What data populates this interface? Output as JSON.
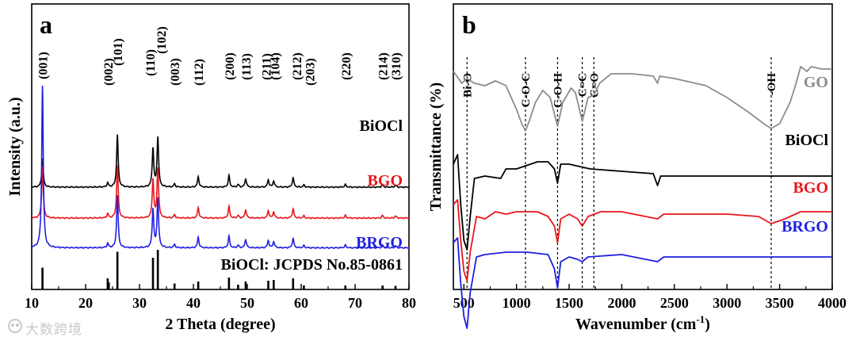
{
  "watermark": "大数跨境",
  "chart_data": [
    {
      "type": "line",
      "panel_label": "a",
      "xlabel": "2 Theta (degree)",
      "ylabel": "Intensity (a.u.)",
      "xlim": [
        10,
        80
      ],
      "xticks": [
        10,
        20,
        30,
        40,
        50,
        60,
        70,
        80
      ],
      "grid": false,
      "peaks": [
        {
          "pos": 12.0,
          "label": "(001)",
          "h": 0.28
        },
        {
          "pos": 24.1,
          "label": "(002)",
          "h": 0.08
        },
        {
          "pos": 25.9,
          "label": "(101)",
          "h": 1.0
        },
        {
          "pos": 32.5,
          "label": "(110)",
          "h": 0.74
        },
        {
          "pos": 33.4,
          "label": "(102)",
          "h": 0.95
        },
        {
          "pos": 36.5,
          "label": "(003)",
          "h": 0.06
        },
        {
          "pos": 40.9,
          "label": "(112)",
          "h": 0.2
        },
        {
          "pos": 46.6,
          "label": "(200)",
          "h": 0.22
        },
        {
          "pos": 48.3,
          "label": "",
          "h": 0.05
        },
        {
          "pos": 49.7,
          "label": "(113)",
          "h": 0.16
        },
        {
          "pos": 53.9,
          "label": "(211)",
          "h": 0.14
        },
        {
          "pos": 54.9,
          "label": "(104)",
          "h": 0.12
        },
        {
          "pos": 58.5,
          "label": "(212)",
          "h": 0.18
        },
        {
          "pos": 60.5,
          "label": "(203)",
          "h": 0.04
        },
        {
          "pos": 68.2,
          "label": "(220)",
          "h": 0.05
        },
        {
          "pos": 75.1,
          "label": "(214)",
          "h": 0.05
        },
        {
          "pos": 77.5,
          "label": "(310)",
          "h": 0.04
        }
      ],
      "series": [
        {
          "name": "BiOCl",
          "color": "#000000",
          "offset": 4.3,
          "scale": 2.2,
          "main001": 0.55
        },
        {
          "name": "BGO",
          "color": "#e8161c",
          "offset": 3.0,
          "scale": 2.2,
          "main001": 1.0
        },
        {
          "name": "BRGO",
          "color": "#1f1fe0",
          "offset": 1.75,
          "scale": 2.2,
          "main001": 3.1
        }
      ],
      "reference": {
        "name": "BiOCl: JCPDS No.85-0861",
        "lines": [
          [
            12.0,
            0.55
          ],
          [
            24.1,
            0.28
          ],
          [
            24.3,
            0.18
          ],
          [
            25.9,
            0.95
          ],
          [
            32.5,
            0.8
          ],
          [
            33.4,
            1.0
          ],
          [
            36.5,
            0.15
          ],
          [
            40.9,
            0.2
          ],
          [
            46.6,
            0.3
          ],
          [
            48.3,
            0.12
          ],
          [
            49.7,
            0.2
          ],
          [
            53.9,
            0.22
          ],
          [
            54.9,
            0.24
          ],
          [
            58.5,
            0.28
          ],
          [
            60.5,
            0.1
          ],
          [
            68.2,
            0.1
          ],
          [
            75.1,
            0.1
          ],
          [
            77.5,
            0.09
          ]
        ]
      }
    },
    {
      "type": "line",
      "panel_label": "b",
      "xlabel": "Wavenumber (cm",
      "xlabel_sup": "-1",
      "xlabel_end": ")",
      "ylabel": "Transmittance (%)",
      "xlim": [
        400,
        4000
      ],
      "xticks": [
        500,
        1000,
        1500,
        2000,
        2500,
        3000,
        3500,
        4000
      ],
      "grid": false,
      "vlines": [
        {
          "x": 530,
          "label": "Bi-O"
        },
        {
          "x": 1085,
          "label": "C-O-C"
        },
        {
          "x": 1390,
          "label": "C-O-H"
        },
        {
          "x": 1625,
          "label": "C=C"
        },
        {
          "x": 1735,
          "label": "C=O"
        },
        {
          "x": 3420,
          "label": "-OH"
        }
      ],
      "series": [
        {
          "name": "GO",
          "color": "#8c8c8c",
          "points": [
            [
              400,
              0.91
            ],
            [
              480,
              0.86
            ],
            [
              530,
              0.88
            ],
            [
              600,
              0.86
            ],
            [
              700,
              0.85
            ],
            [
              800,
              0.87
            ],
            [
              900,
              0.85
            ],
            [
              950,
              0.8
            ],
            [
              1000,
              0.75
            ],
            [
              1050,
              0.69
            ],
            [
              1085,
              0.66
            ],
            [
              1120,
              0.7
            ],
            [
              1180,
              0.78
            ],
            [
              1250,
              0.83
            ],
            [
              1320,
              0.8
            ],
            [
              1390,
              0.68
            ],
            [
              1440,
              0.78
            ],
            [
              1520,
              0.84
            ],
            [
              1560,
              0.82
            ],
            [
              1625,
              0.7
            ],
            [
              1680,
              0.8
            ],
            [
              1735,
              0.81
            ],
            [
              1790,
              0.86
            ],
            [
              1900,
              0.9
            ],
            [
              2000,
              0.9
            ],
            [
              2100,
              0.9
            ],
            [
              2300,
              0.89
            ],
            [
              2340,
              0.86
            ],
            [
              2360,
              0.89
            ],
            [
              2500,
              0.88
            ],
            [
              2800,
              0.85
            ],
            [
              3000,
              0.8
            ],
            [
              3200,
              0.74
            ],
            [
              3350,
              0.69
            ],
            [
              3420,
              0.67
            ],
            [
              3500,
              0.69
            ],
            [
              3600,
              0.78
            ],
            [
              3650,
              0.85
            ],
            [
              3700,
              0.93
            ],
            [
              3760,
              0.91
            ],
            [
              3800,
              0.93
            ],
            [
              3900,
              0.92
            ],
            [
              4000,
              0.92
            ]
          ]
        },
        {
          "name": "BiOCl",
          "color": "#000000",
          "points": [
            [
              400,
              0.52
            ],
            [
              440,
              0.56
            ],
            [
              470,
              0.35
            ],
            [
              500,
              0.2
            ],
            [
              530,
              0.16
            ],
            [
              560,
              0.3
            ],
            [
              600,
              0.46
            ],
            [
              700,
              0.47
            ],
            [
              850,
              0.46
            ],
            [
              900,
              0.5
            ],
            [
              1000,
              0.5
            ],
            [
              1200,
              0.53
            ],
            [
              1300,
              0.53
            ],
            [
              1360,
              0.5
            ],
            [
              1390,
              0.44
            ],
            [
              1420,
              0.52
            ],
            [
              1500,
              0.52
            ],
            [
              1700,
              0.5
            ],
            [
              2000,
              0.49
            ],
            [
              2300,
              0.48
            ],
            [
              2340,
              0.43
            ],
            [
              2370,
              0.47
            ],
            [
              2500,
              0.47
            ],
            [
              3000,
              0.47
            ],
            [
              3400,
              0.47
            ],
            [
              4000,
              0.47
            ]
          ]
        },
        {
          "name": "BGO",
          "color": "#e8161c",
          "points": [
            [
              400,
              0.35
            ],
            [
              440,
              0.37
            ],
            [
              470,
              0.2
            ],
            [
              500,
              0.07
            ],
            [
              530,
              0.03
            ],
            [
              560,
              0.15
            ],
            [
              620,
              0.3
            ],
            [
              700,
              0.29
            ],
            [
              800,
              0.32
            ],
            [
              900,
              0.31
            ],
            [
              1000,
              0.32
            ],
            [
              1200,
              0.32
            ],
            [
              1300,
              0.3
            ],
            [
              1360,
              0.26
            ],
            [
              1390,
              0.19
            ],
            [
              1420,
              0.29
            ],
            [
              1500,
              0.31
            ],
            [
              1580,
              0.29
            ],
            [
              1625,
              0.26
            ],
            [
              1680,
              0.3
            ],
            [
              1800,
              0.32
            ],
            [
              2000,
              0.32
            ],
            [
              2340,
              0.29
            ],
            [
              2400,
              0.31
            ],
            [
              3000,
              0.31
            ],
            [
              3300,
              0.3
            ],
            [
              3420,
              0.27
            ],
            [
              3550,
              0.29
            ],
            [
              3700,
              0.32
            ],
            [
              4000,
              0.32
            ]
          ]
        },
        {
          "name": "BRGO",
          "color": "#1f1fe0",
          "points": [
            [
              400,
              0.19
            ],
            [
              440,
              0.21
            ],
            [
              470,
              0.02
            ],
            [
              500,
              -0.12
            ],
            [
              530,
              -0.17
            ],
            [
              560,
              -0.02
            ],
            [
              620,
              0.13
            ],
            [
              700,
              0.14
            ],
            [
              900,
              0.15
            ],
            [
              1100,
              0.15
            ],
            [
              1300,
              0.14
            ],
            [
              1360,
              0.08
            ],
            [
              1390,
              0.0
            ],
            [
              1420,
              0.11
            ],
            [
              1500,
              0.13
            ],
            [
              1580,
              0.12
            ],
            [
              1625,
              0.11
            ],
            [
              1680,
              0.13
            ],
            [
              2000,
              0.14
            ],
            [
              2340,
              0.11
            ],
            [
              2400,
              0.13
            ],
            [
              3000,
              0.13
            ],
            [
              3500,
              0.13
            ],
            [
              4000,
              0.13
            ]
          ]
        }
      ]
    }
  ]
}
